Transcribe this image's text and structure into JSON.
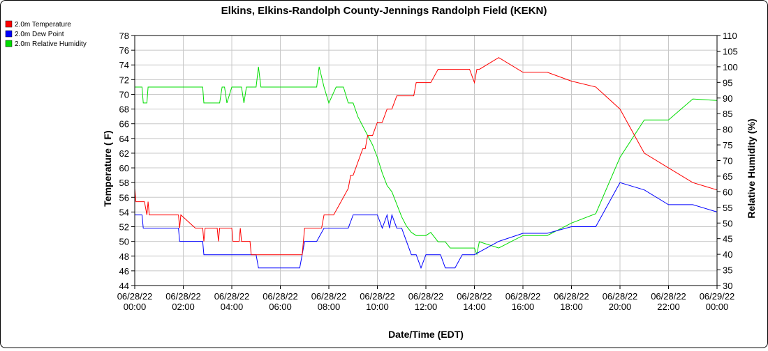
{
  "chart_data": {
    "type": "line",
    "title": "Elkins, Elkins-Randolph County-Jennings Randolph Field (KEKN)",
    "xlabel": "Date/Time (EDT)",
    "ylabel_left": "Temperature ( F)",
    "ylabel_right": "Relative Humidity (%)",
    "ylim_left": [
      44,
      78
    ],
    "ylim_right": [
      30,
      110
    ],
    "xlim_hours": [
      0,
      24
    ],
    "y_ticks_left": [
      "44",
      "46",
      "48",
      "50",
      "52",
      "54",
      "56",
      "58",
      "60",
      "62",
      "64",
      "66",
      "68",
      "70",
      "72",
      "74",
      "76",
      "78"
    ],
    "y_ticks_right": [
      "30",
      "35",
      "40",
      "45",
      "50",
      "55",
      "60",
      "65",
      "70",
      "75",
      "80",
      "85",
      "90",
      "95",
      "100",
      "105",
      "110"
    ],
    "x_ticks": [
      {
        "date": "06/28/22",
        "time": "00:00"
      },
      {
        "date": "06/28/22",
        "time": "02:00"
      },
      {
        "date": "06/28/22",
        "time": "04:00"
      },
      {
        "date": "06/28/22",
        "time": "06:00"
      },
      {
        "date": "06/28/22",
        "time": "08:00"
      },
      {
        "date": "06/28/22",
        "time": "10:00"
      },
      {
        "date": "06/28/22",
        "time": "12:00"
      },
      {
        "date": "06/28/22",
        "time": "14:00"
      },
      {
        "date": "06/28/22",
        "time": "16:00"
      },
      {
        "date": "06/28/22",
        "time": "18:00"
      },
      {
        "date": "06/28/22",
        "time": "20:00"
      },
      {
        "date": "06/28/22",
        "time": "22:00"
      },
      {
        "date": "06/29/22",
        "time": "00:00"
      }
    ],
    "grid": true,
    "legend_position": "top-left",
    "series": [
      {
        "name": "2.0m Temperature",
        "color": "#ff0000",
        "axis": "left",
        "x": [
          0,
          0.05,
          0.4,
          0.5,
          0.55,
          0.6,
          0.7,
          0.8,
          1.5,
          1.8,
          1.85,
          1.9,
          2.5,
          2.8,
          2.85,
          2.9,
          3.4,
          3.45,
          3.5,
          4.0,
          4.05,
          4.1,
          4.3,
          4.35,
          4.4,
          4.75,
          4.8,
          5.0,
          5.1,
          5.2,
          5.3,
          5.4,
          5.5,
          5.6,
          5.7,
          6.0,
          6.2,
          6.3,
          6.4,
          6.5,
          6.6,
          6.9,
          7.0,
          7.5,
          7.6,
          7.7,
          7.8,
          8.0,
          8.1,
          8.2,
          8.5,
          8.8,
          8.9,
          9.0,
          9.2,
          9.4,
          9.5,
          9.6,
          9.8,
          10.0,
          10.2,
          10.4,
          10.6,
          10.8,
          11.0,
          11.5,
          11.6,
          11.7,
          11.8,
          11.9,
          12.0,
          12.2,
          12.5,
          12.6,
          12.7,
          12.8,
          13.0,
          13.3,
          13.5,
          13.8,
          14.0,
          14.1,
          14.2,
          15.0,
          16.0,
          17.0,
          18.0,
          19.0,
          20.0,
          21.0,
          22.0,
          23.0,
          24.0
        ],
        "values": [
          57.2,
          55.4,
          55.4,
          53.6,
          55.4,
          53.6,
          53.6,
          53.6,
          53.6,
          53.6,
          51.8,
          53.6,
          51.8,
          51.8,
          50,
          51.8,
          51.8,
          50,
          51.8,
          51.8,
          50,
          50,
          50,
          51.8,
          50,
          50,
          48.2,
          48.2,
          48.2,
          48.2,
          48.2,
          48.2,
          48.2,
          48.2,
          48.2,
          48.2,
          48.2,
          48.2,
          48.2,
          48.2,
          48.2,
          48.2,
          51.8,
          51.8,
          51.8,
          51.8,
          53.6,
          53.6,
          53.6,
          53.6,
          55.4,
          57.2,
          59,
          59,
          60.8,
          62.6,
          62.6,
          64.4,
          64.4,
          66.2,
          66.2,
          68,
          68,
          69.8,
          69.8,
          69.8,
          71.6,
          71.6,
          71.6,
          71.6,
          71.6,
          71.6,
          73.4,
          73.4,
          73.4,
          73.4,
          73.4,
          73.4,
          73.4,
          73.4,
          71.6,
          73.4,
          73.4,
          75,
          73,
          73,
          71.8,
          71,
          68,
          62,
          60,
          58,
          57
        ]
      },
      {
        "name": "2.0m Dew Point",
        "color": "#0000ff",
        "axis": "left",
        "x": [
          0,
          0.3,
          0.35,
          0.5,
          1.5,
          1.8,
          1.85,
          2.0,
          2.8,
          2.85,
          3.0,
          4.0,
          5.0,
          5.1,
          5.3,
          5.5,
          5.7,
          6.0,
          6.2,
          6.5,
          6.6,
          6.8,
          7.0,
          7.5,
          7.8,
          8.0,
          8.5,
          8.8,
          9.0,
          9.5,
          9.8,
          10.0,
          10.2,
          10.4,
          10.5,
          10.6,
          10.8,
          11.0,
          11.2,
          11.4,
          11.5,
          11.6,
          11.8,
          12.0,
          12.2,
          12.5,
          12.6,
          12.8,
          13.0,
          13.2,
          13.5,
          13.8,
          14.0,
          15.0,
          16.0,
          17.0,
          18.0,
          19.0,
          20.0,
          21.0,
          22.0,
          23.0,
          24.0
        ],
        "values": [
          53.6,
          53.6,
          51.8,
          51.8,
          51.8,
          51.8,
          50,
          50,
          50,
          48.2,
          48.2,
          48.2,
          48.2,
          46.4,
          46.4,
          46.4,
          46.4,
          46.4,
          46.4,
          46.4,
          46.4,
          46.4,
          50,
          50,
          51.8,
          51.8,
          51.8,
          51.8,
          53.6,
          53.6,
          53.6,
          53.6,
          51.8,
          53.6,
          51.8,
          53.6,
          51.8,
          51.8,
          50,
          48.2,
          48.2,
          48.2,
          46.4,
          48.2,
          48.2,
          48.2,
          48.2,
          46.4,
          46.4,
          46.4,
          48.2,
          48.2,
          48.2,
          50,
          51.1,
          51.1,
          52,
          52,
          58,
          57,
          55,
          55,
          54
        ]
      },
      {
        "name": "2.0m Relative Humidity",
        "color": "#00dd00",
        "axis": "right",
        "x": [
          0,
          0.3,
          0.35,
          0.5,
          0.55,
          0.6,
          1.9,
          2.0,
          2.8,
          2.85,
          3.0,
          3.5,
          3.6,
          3.7,
          3.8,
          4.0,
          4.2,
          4.4,
          4.5,
          4.6,
          4.8,
          4.9,
          5.0,
          5.1,
          5.2,
          5.5,
          5.8,
          6.0,
          6.3,
          6.5,
          6.8,
          7.0,
          7.2,
          7.4,
          7.5,
          7.6,
          7.8,
          8.0,
          8.3,
          8.6,
          8.8,
          9.0,
          9.2,
          9.4,
          9.6,
          9.8,
          10.0,
          10.2,
          10.4,
          10.6,
          10.8,
          11.0,
          11.2,
          11.4,
          11.6,
          11.8,
          12.0,
          12.2,
          12.5,
          12.8,
          13.0,
          13.2,
          13.5,
          13.8,
          14.0,
          14.1,
          14.2,
          15.0,
          16.0,
          17.0,
          18.0,
          19.0,
          20.0,
          21.0,
          22.0,
          23.0,
          24.0
        ],
        "values": [
          93.5,
          93.5,
          88.4,
          88.4,
          93.5,
          93.5,
          93.5,
          93.5,
          93.5,
          88.4,
          88.4,
          88.4,
          93.5,
          93.5,
          88.4,
          93.5,
          93.5,
          93.5,
          88.4,
          93.5,
          93.5,
          93.5,
          93.5,
          100,
          93.5,
          93.5,
          93.5,
          93.5,
          93.5,
          93.5,
          93.5,
          93.5,
          93.5,
          93.5,
          93.5,
          100,
          93.5,
          88.4,
          93.5,
          93.5,
          88.4,
          88.4,
          84,
          81,
          78,
          75,
          71,
          66,
          62,
          60,
          56,
          52,
          49,
          47,
          46,
          46,
          46,
          47,
          44,
          44,
          42,
          42,
          42,
          42,
          42,
          40,
          44,
          42,
          46,
          46,
          50,
          53,
          71,
          83,
          83,
          89.7,
          89.2
        ]
      }
    ]
  }
}
